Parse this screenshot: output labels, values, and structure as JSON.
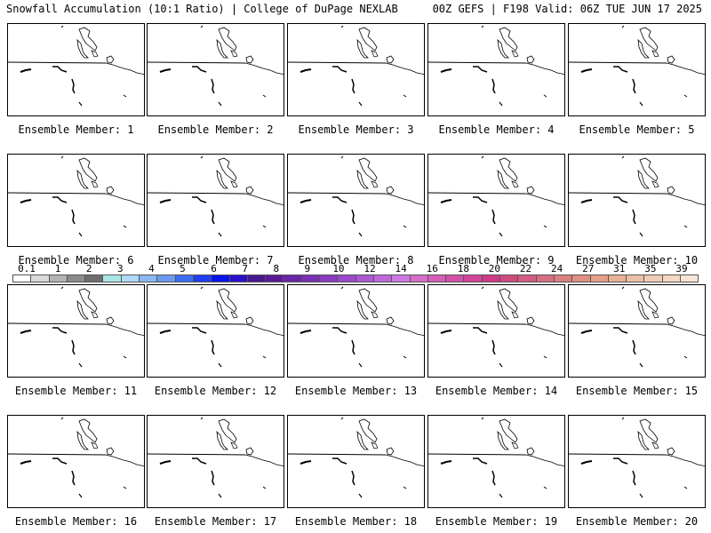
{
  "header": {
    "title": "Snowfall Accumulation (10:1 Ratio) | College of DuPage NEXLAB",
    "run_info": "00Z GEFS | F198 Valid: 06Z TUE JUN 17 2025"
  },
  "panels": [
    {
      "label": "Ensemble Member: 1"
    },
    {
      "label": "Ensemble Member: 2"
    },
    {
      "label": "Ensemble Member: 3"
    },
    {
      "label": "Ensemble Member: 4"
    },
    {
      "label": "Ensemble Member: 5"
    },
    {
      "label": "Ensemble Member: 6"
    },
    {
      "label": "Ensemble Member: 7"
    },
    {
      "label": "Ensemble Member: 8"
    },
    {
      "label": "Ensemble Member: 9"
    },
    {
      "label": "Ensemble Member: 10"
    },
    {
      "label": "Ensemble Member: 11"
    },
    {
      "label": "Ensemble Member: 12"
    },
    {
      "label": "Ensemble Member: 13"
    },
    {
      "label": "Ensemble Member: 14"
    },
    {
      "label": "Ensemble Member: 15"
    },
    {
      "label": "Ensemble Member: 16"
    },
    {
      "label": "Ensemble Member: 17"
    },
    {
      "label": "Ensemble Member: 18"
    },
    {
      "label": "Ensemble Member: 19"
    },
    {
      "label": "Ensemble Member: 20"
    }
  ],
  "colorbar": {
    "tick_labels": [
      "0.1",
      "1",
      "2",
      "3",
      "4",
      "5",
      "6",
      "7",
      "8",
      "9",
      "10",
      "12",
      "14",
      "16",
      "18",
      "20",
      "22",
      "24",
      "27",
      "31",
      "35",
      "39"
    ],
    "colors": [
      "#ffffff",
      "#d9d9d9",
      "#b3b3b3",
      "#8c8c8c",
      "#6e6e6e",
      "#a8e6e6",
      "#b0d8f8",
      "#8ab8f0",
      "#6a98f0",
      "#3d6cf0",
      "#1f3ff0",
      "#0a14e8",
      "#2a10c8",
      "#4a1890",
      "#5a1a96",
      "#6a24a6",
      "#7a30b4",
      "#8a3cc0",
      "#9c48cc",
      "#ad58d4",
      "#be68dc",
      "#ce78e2",
      "#d46ec8",
      "#d65eb8",
      "#d450a8",
      "#d24498",
      "#d03a88",
      "#d04a80",
      "#d45c84",
      "#d86e80",
      "#dc8080",
      "#e09080",
      "#e4a088",
      "#e8b094",
      "#ecc0a4",
      "#f0ccb4",
      "#f4d8c4",
      "#f8e4d4"
    ]
  }
}
